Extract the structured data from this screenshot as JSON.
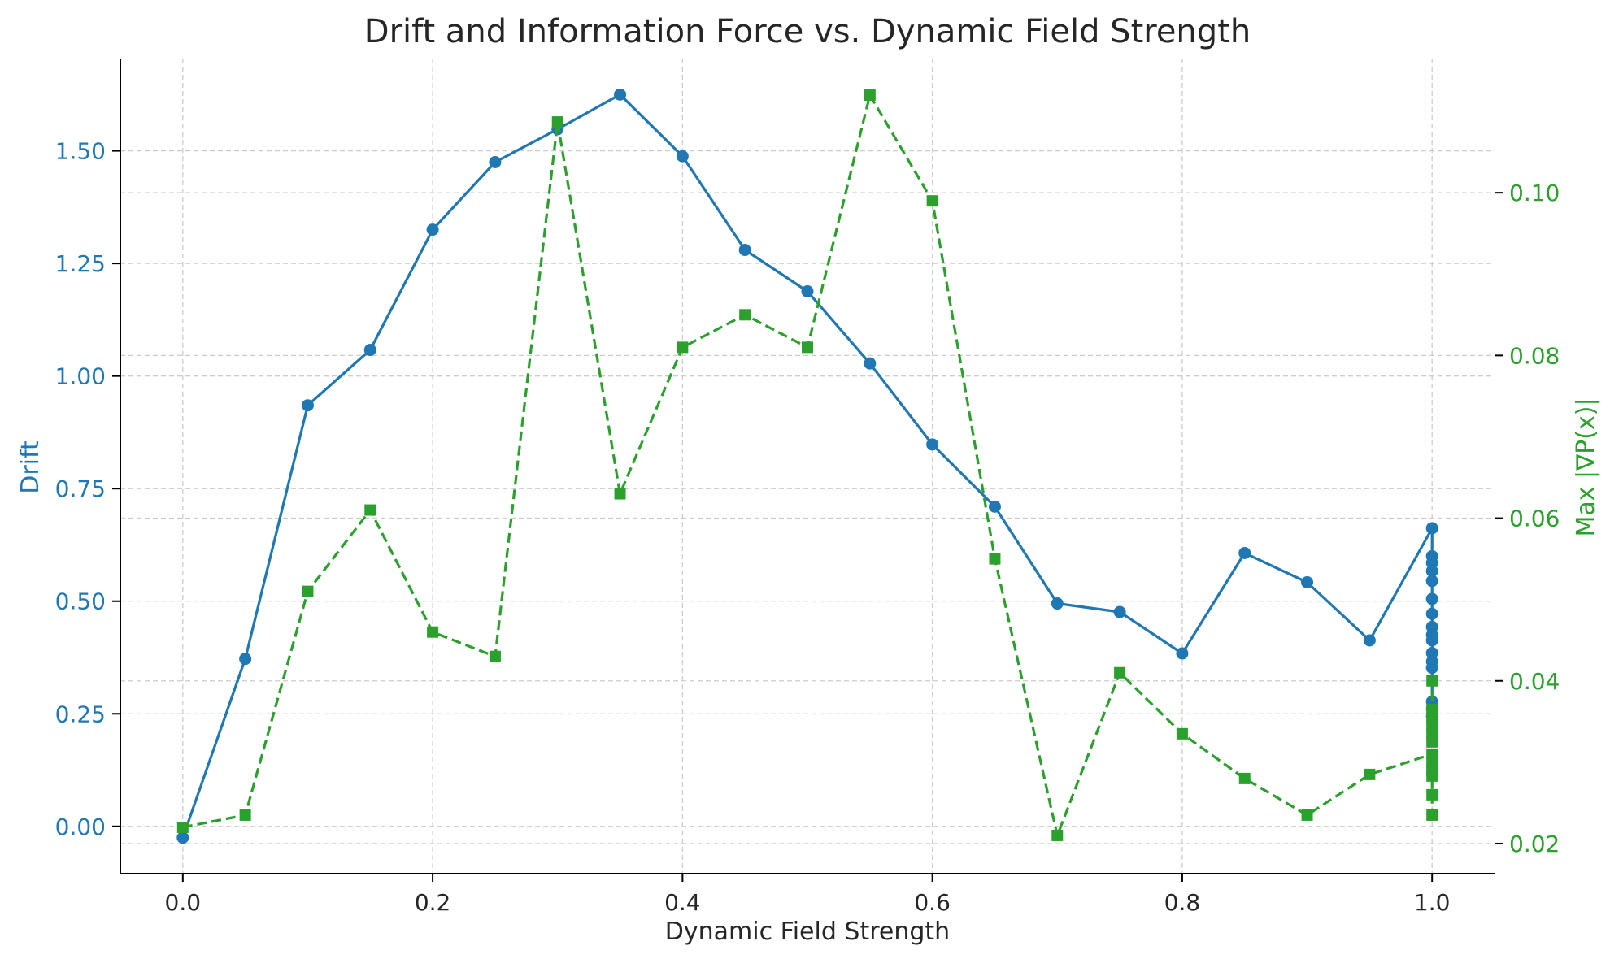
{
  "chart_data": {
    "type": "line",
    "title": "Drift and Information Force vs. Dynamic Field Strength",
    "xlabel": "Dynamic Field Strength",
    "ylabel_left": "Drift",
    "ylabel_right": "Max |∇P(x)|",
    "xlim": [
      -0.05,
      1.05
    ],
    "ylim_left": [
      -0.105,
      1.705
    ],
    "ylim_right": [
      0.0163,
      0.1165
    ],
    "xticks": [
      "0.0",
      "0.2",
      "0.4",
      "0.6",
      "0.8",
      "1.0"
    ],
    "xtick_values": [
      0.0,
      0.2,
      0.4,
      0.6,
      0.8,
      1.0
    ],
    "yticks_left": [
      "0.00",
      "0.25",
      "0.50",
      "0.75",
      "1.00",
      "1.25",
      "1.50"
    ],
    "ytick_values_left": [
      0.0,
      0.25,
      0.5,
      0.75,
      1.0,
      1.25,
      1.5
    ],
    "yticks_right": [
      "0.02",
      "0.04",
      "0.06",
      "0.08",
      "0.10"
    ],
    "ytick_values_right": [
      0.02,
      0.04,
      0.06,
      0.08,
      0.1
    ],
    "grid": true,
    "colors": {
      "left": "#1f77b4",
      "right": "#2ca02c"
    },
    "series": [
      {
        "axis": "left",
        "marker": "circle",
        "linestyle": "solid",
        "color": "#1f77b4",
        "x": [
          0.0,
          0.05,
          0.1,
          0.15,
          0.2,
          0.25,
          0.3,
          0.35,
          0.4,
          0.45,
          0.5,
          0.55,
          0.6,
          0.65,
          0.7,
          0.75,
          0.8,
          0.85,
          0.9,
          0.95,
          1.0,
          1.0,
          1.0,
          1.0,
          1.0,
          1.0,
          1.0,
          1.0,
          1.0,
          1.0,
          1.0,
          1.0,
          1.0,
          1.0,
          1.0,
          1.0
        ],
        "y": [
          -0.025,
          0.372,
          0.935,
          1.058,
          1.325,
          1.475,
          1.548,
          1.625,
          1.488,
          1.28,
          1.188,
          1.028,
          0.848,
          0.71,
          0.495,
          0.476,
          0.384,
          0.607,
          0.542,
          0.413,
          0.662,
          0.6,
          0.585,
          0.567,
          0.545,
          0.505,
          0.472,
          0.443,
          0.425,
          0.413,
          0.385,
          0.366,
          0.352,
          0.277,
          0.261,
          0.244
        ]
      },
      {
        "axis": "right",
        "marker": "square",
        "linestyle": "dashed",
        "color": "#2ca02c",
        "x": [
          0.0,
          0.05,
          0.1,
          0.15,
          0.2,
          0.25,
          0.3,
          0.35,
          0.4,
          0.45,
          0.5,
          0.55,
          0.6,
          0.65,
          0.7,
          0.75,
          0.8,
          0.85,
          0.9,
          0.95,
          1.0,
          1.0,
          1.0,
          1.0,
          1.0,
          1.0,
          1.0,
          1.0,
          1.0,
          1.0,
          1.0,
          1.0
        ],
        "y": [
          0.022,
          0.0235,
          0.051,
          0.061,
          0.046,
          0.043,
          0.1087,
          0.063,
          0.081,
          0.085,
          0.081,
          0.112,
          0.099,
          0.055,
          0.021,
          0.041,
          0.0335,
          0.028,
          0.0235,
          0.0285,
          0.031,
          0.04,
          0.0365,
          0.0355,
          0.0345,
          0.0335,
          0.0325,
          0.03,
          0.029,
          0.0283,
          0.026,
          0.0235
        ]
      }
    ]
  }
}
